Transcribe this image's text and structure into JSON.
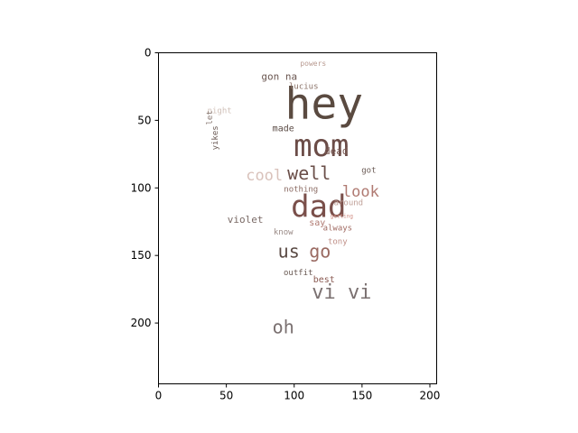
{
  "chart_data": {
    "type": "wordcloud",
    "xlim": [
      0,
      205
    ],
    "ylim": [
      245,
      0
    ],
    "x_ticks": [
      0,
      50,
      100,
      150,
      200
    ],
    "y_ticks": [
      0,
      50,
      100,
      150,
      200
    ],
    "grid": false,
    "words": [
      {
        "text": "hey",
        "x": 122,
        "y": 40,
        "size": 48,
        "color": "#5a4a40"
      },
      {
        "text": "mom",
        "x": 120,
        "y": 70,
        "size": 34,
        "color": "#6b4c47"
      },
      {
        "text": "dad",
        "x": 118,
        "y": 115,
        "size": 34,
        "color": "#7a4f4a"
      },
      {
        "text": "well",
        "x": 111,
        "y": 90,
        "size": 20,
        "color": "#6a4e48"
      },
      {
        "text": "cool",
        "x": 78,
        "y": 91,
        "size": 17,
        "color": "#d9c2bb"
      },
      {
        "text": "look",
        "x": 149,
        "y": 103,
        "size": 17,
        "color": "#b07a72"
      },
      {
        "text": "vi vi",
        "x": 135,
        "y": 178,
        "size": 22,
        "color": "#7a7070"
      },
      {
        "text": "oh",
        "x": 92,
        "y": 204,
        "size": 20,
        "color": "#7a7070"
      },
      {
        "text": "us",
        "x": 96,
        "y": 148,
        "size": 20,
        "color": "#5a4a44"
      },
      {
        "text": "go",
        "x": 119,
        "y": 148,
        "size": 20,
        "color": "#9a6a62"
      },
      {
        "text": "gon na",
        "x": 89,
        "y": 18,
        "size": 11,
        "color": "#6a5650"
      },
      {
        "text": "lucius",
        "x": 107,
        "y": 25,
        "size": 9,
        "color": "#8a7268"
      },
      {
        "text": "powers",
        "x": 114,
        "y": 8,
        "size": 8,
        "color": "#b89a90"
      },
      {
        "text": "night",
        "x": 45,
        "y": 43,
        "size": 9,
        "color": "#d0c0b8"
      },
      {
        "text": "made",
        "x": 92,
        "y": 56,
        "size": 10,
        "color": "#5a4a44"
      },
      {
        "text": "dead",
        "x": 131,
        "y": 73,
        "size": 11,
        "color": "#7a5a54"
      },
      {
        "text": "got",
        "x": 155,
        "y": 87,
        "size": 9,
        "color": "#6a5a54"
      },
      {
        "text": "nothing",
        "x": 105,
        "y": 101,
        "size": 9,
        "color": "#8a6a62"
      },
      {
        "text": "around",
        "x": 140,
        "y": 111,
        "size": 9,
        "color": "#c0a098"
      },
      {
        "text": "violet",
        "x": 64,
        "y": 124,
        "size": 11,
        "color": "#7a6a66"
      },
      {
        "text": "know",
        "x": 92,
        "y": 133,
        "size": 9,
        "color": "#9a8a86"
      },
      {
        "text": "say",
        "x": 117,
        "y": 126,
        "size": 10,
        "color": "#b07a72"
      },
      {
        "text": "always",
        "x": 132,
        "y": 130,
        "size": 9,
        "color": "#a06a62"
      },
      {
        "text": "tony",
        "x": 132,
        "y": 140,
        "size": 9,
        "color": "#c09088"
      },
      {
        "text": "outfit",
        "x": 103,
        "y": 163,
        "size": 9,
        "color": "#6a5a54"
      },
      {
        "text": "best",
        "x": 122,
        "y": 168,
        "size": 10,
        "color": "#8a5a52"
      },
      {
        "text": "yikes",
        "x": 42,
        "y": 63,
        "size": 9,
        "color": "#6a5a54",
        "rotate": -90
      },
      {
        "text": "let",
        "x": 38,
        "y": 48,
        "size": 9,
        "color": "#8a7a74",
        "rotate": -90
      },
      {
        "text": "getting",
        "x": 135,
        "y": 121,
        "size": 6,
        "color": "#d08a80"
      }
    ]
  }
}
